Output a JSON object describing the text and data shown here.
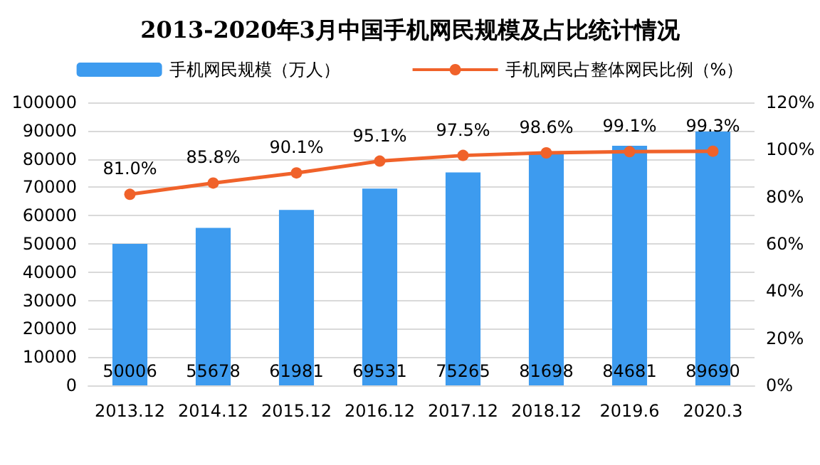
{
  "chart_data": {
    "type": "bar",
    "title": "2013-2020年3月中国手机网民规模及占比统计情况",
    "categories": [
      "2013.12",
      "2014.12",
      "2015.12",
      "2016.12",
      "2017.12",
      "2018.12",
      "2019.6",
      "2020.3"
    ],
    "series": [
      {
        "name": "手机网民规模（万人）",
        "color": "#3d9bef",
        "values": [
          50006,
          55678,
          61981,
          69531,
          75265,
          81698,
          84681,
          89690
        ],
        "value_labels": [
          "50006",
          "55678",
          "61981",
          "69531",
          "75265",
          "81698",
          "84681",
          "89690"
        ]
      },
      {
        "name": "手机网民占整体网民比例（%）",
        "type": "line",
        "axis": "y2",
        "color": "#f0622a",
        "marker": "circle",
        "values": [
          81.0,
          85.8,
          90.1,
          95.1,
          97.5,
          98.6,
          99.1,
          99.3
        ],
        "value_labels": [
          "81.0%",
          "85.8%",
          "90.1%",
          "95.1%",
          "97.5%",
          "98.6%",
          "99.1%",
          "99.3%"
        ]
      }
    ],
    "ylim": [
      0,
      100000
    ],
    "yticks": [
      0,
      10000,
      20000,
      30000,
      40000,
      50000,
      60000,
      70000,
      80000,
      90000,
      100000
    ],
    "y2lim": [
      0,
      120
    ],
    "y2ticks": [
      {
        "value": 0,
        "label": "0%"
      },
      {
        "value": 20,
        "label": "20%"
      },
      {
        "value": 40,
        "label": "40%"
      },
      {
        "value": 60,
        "label": "60%"
      },
      {
        "value": 80,
        "label": "80%"
      },
      {
        "value": 100,
        "label": "100%"
      },
      {
        "value": 120,
        "label": "120%"
      }
    ],
    "grid": "y",
    "legend": "top"
  }
}
